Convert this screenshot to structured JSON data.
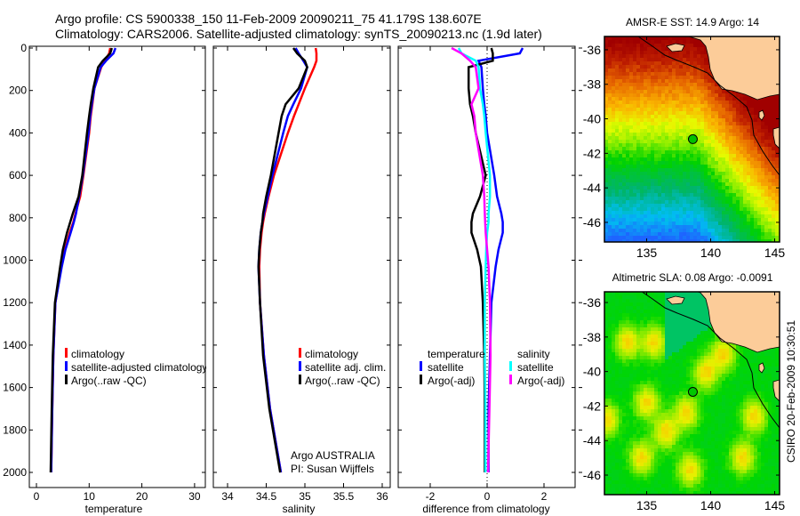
{
  "header": {
    "line1": "Argo profile: CS 5900338_150 11-Feb-2009 20090211_75 41.179S 138.607E",
    "line2": "Climatology: CARS2006. Satellite-adjusted climatology: synTS_20090213.nc (1.9d later)"
  },
  "colors": {
    "climatology": "#ff0000",
    "satellite": "#0000ff",
    "argo": "#000000",
    "sal_satellite": "#00ffff",
    "sal_argo": "#ff00ff"
  },
  "chart_data": [
    {
      "type": "line",
      "id": "temperature",
      "xlabel": "temperature",
      "ylabel": "",
      "xlim": [
        -2,
        32
      ],
      "ylim": [
        2000,
        0
      ],
      "xticks": [
        "0",
        "10",
        "20",
        "30"
      ],
      "xtick_values": [
        0,
        10,
        20,
        30
      ],
      "yticks": [
        "0",
        "200",
        "400",
        "600",
        "800",
        "1000",
        "1200",
        "1400",
        "1600",
        "1800",
        "2000"
      ],
      "depth": [
        0,
        25,
        60,
        90,
        190,
        265,
        320,
        400,
        600,
        700,
        780,
        820,
        870,
        950,
        1030,
        1200,
        1450,
        1700,
        2000
      ],
      "series": [
        {
          "name": "climatology",
          "color": "#ff0000",
          "values": [
            14.0,
            13.8,
            13.0,
            12.3,
            11.0,
            10.6,
            10.3,
            10.0,
            8.9,
            8.3,
            7.4,
            7.0,
            6.3,
            5.4,
            4.7,
            3.6,
            3.2,
            3.0,
            2.8
          ]
        },
        {
          "name": "satellite-adjusted climatology",
          "color": "#0000ff",
          "values": [
            15.0,
            14.6,
            13.2,
            12.2,
            11.0,
            10.5,
            10.2,
            9.9,
            8.8,
            8.1,
            7.5,
            7.1,
            6.5,
            5.5,
            4.8,
            3.6,
            3.2,
            3.0,
            2.8
          ]
        },
        {
          "name": "Argo(..raw -QC)",
          "color": "#000000",
          "values": [
            14.3,
            14.0,
            12.6,
            11.7,
            10.8,
            10.3,
            10.0,
            9.6,
            8.7,
            8.0,
            6.9,
            6.4,
            5.8,
            5.0,
            4.5,
            3.5,
            3.1,
            2.9,
            2.7
          ]
        }
      ],
      "legend": [
        "climatology",
        "satellite-adjusted climatology",
        "Argo(..raw -QC)"
      ]
    },
    {
      "type": "line",
      "id": "salinity",
      "xlabel": "salinity",
      "xlim": [
        33.8,
        36.1
      ],
      "ylim": [
        2000,
        0
      ],
      "xticks": [
        "34",
        "34.5",
        "35",
        "35.5",
        "36"
      ],
      "xtick_values": [
        34,
        34.5,
        35,
        35.5,
        36
      ],
      "depth": [
        0,
        25,
        60,
        90,
        190,
        265,
        320,
        400,
        600,
        700,
        780,
        820,
        870,
        950,
        1030,
        1200,
        1450,
        1700,
        2000
      ],
      "series": [
        {
          "name": "climatology",
          "color": "#ff0000",
          "values": [
            35.14,
            35.15,
            35.15,
            35.12,
            35.0,
            34.92,
            34.86,
            34.78,
            34.6,
            34.53,
            34.48,
            34.46,
            34.44,
            34.42,
            34.41,
            34.42,
            34.47,
            34.55,
            34.69
          ]
        },
        {
          "name": "satellite adj. clim.",
          "color": "#0000ff",
          "values": [
            34.88,
            34.92,
            34.98,
            35.03,
            34.95,
            34.85,
            34.78,
            34.72,
            34.58,
            34.52,
            34.47,
            34.45,
            34.43,
            34.41,
            34.4,
            34.42,
            34.47,
            34.55,
            34.69
          ]
        },
        {
          "name": "Argo(..raw -QC)",
          "color": "#000000",
          "values": [
            34.85,
            34.9,
            35.0,
            35.03,
            34.92,
            34.75,
            34.7,
            34.66,
            34.56,
            34.5,
            34.46,
            34.45,
            34.43,
            34.41,
            34.4,
            34.42,
            34.46,
            34.54,
            34.68
          ]
        }
      ],
      "legend": [
        "climatology",
        "satellite adj. clim.",
        "Argo(..raw -QC)"
      ],
      "annotation": [
        "Argo AUSTRALIA",
        "PI: Susan Wijffels"
      ]
    },
    {
      "type": "line",
      "id": "difference",
      "xlabel": "difference from climatology",
      "xlim": [
        -2.5,
        3.1
      ],
      "ylim": [
        2000,
        0
      ],
      "xticks": [
        "-2",
        "0",
        "2"
      ],
      "xtick_values": [
        -2,
        0,
        2
      ],
      "depth": [
        0,
        25,
        60,
        90,
        190,
        265,
        320,
        400,
        600,
        700,
        780,
        820,
        870,
        950,
        1030,
        1200,
        1450,
        1700,
        2000
      ],
      "series": [
        {
          "name": "temperature satellite",
          "color": "#0000ff",
          "values": [
            1.25,
            1.15,
            -0.3,
            -0.2,
            -0.15,
            -0.1,
            -0.05,
            0.0,
            0.25,
            0.35,
            0.5,
            0.55,
            0.55,
            0.4,
            0.3,
            0.15,
            0.1,
            0.05,
            0.05
          ]
        },
        {
          "name": "temperature Argo(-adj)",
          "color": "#000000",
          "values": [
            0.15,
            0.2,
            0.2,
            -0.65,
            -0.65,
            -0.6,
            -0.5,
            -0.4,
            -0.05,
            -0.25,
            -0.5,
            -0.55,
            -0.55,
            -0.35,
            -0.22,
            -0.15,
            -0.1,
            -0.08,
            -0.08
          ]
        },
        {
          "name": "salinity satellite",
          "color": "#00ffff",
          "values": [
            -1.0,
            -0.9,
            -0.4,
            -0.3,
            -0.25,
            -0.15,
            -0.1,
            -0.05,
            0.1,
            0.1,
            0.05,
            0.05,
            0.0,
            -0.03,
            -0.05,
            -0.08,
            -0.08,
            -0.06,
            -0.06
          ]
        },
        {
          "name": "salinity Argo(-adj)",
          "color": "#ff00ff",
          "values": [
            -1.25,
            -0.9,
            -0.6,
            -0.4,
            -0.3,
            -0.55,
            -0.45,
            -0.4,
            -0.15,
            -0.1,
            -0.08,
            -0.07,
            -0.05,
            0.0,
            0.05,
            0.1,
            0.12,
            0.08,
            0.03
          ]
        }
      ],
      "legend": {
        "temp_title": "temperature",
        "sal_title": "salinity",
        "satellite": "satellite",
        "argo": "Argo(-adj)"
      }
    },
    {
      "type": "heatmap",
      "id": "sst-map",
      "title": "AMSR-E SST: 14.9 Argo: 14",
      "xticks": [
        "135",
        "140",
        "145"
      ],
      "yticks": [
        "-36",
        "-38",
        "-40",
        "-42",
        "-44",
        "-46"
      ],
      "xlim": [
        131.7,
        145.4
      ],
      "ylim": [
        -47.1,
        -35.2
      ],
      "float_position": {
        "lon": 138.607,
        "lat": -41.179
      }
    },
    {
      "type": "heatmap",
      "id": "sla-map",
      "title": "Altimetric SLA: 0.08 Argo: -0.0091",
      "xticks": [
        "135",
        "140",
        "145"
      ],
      "yticks": [
        "-36",
        "-38",
        "-40",
        "-42",
        "-44",
        "-46"
      ],
      "xlim": [
        131.7,
        145.4
      ],
      "ylim": [
        -47.1,
        -35.4
      ],
      "float_position": {
        "lon": 138.607,
        "lat": -41.179
      }
    }
  ],
  "footer": {
    "stamp": "CSIRO 20-Feb-2009 10:30:51"
  }
}
